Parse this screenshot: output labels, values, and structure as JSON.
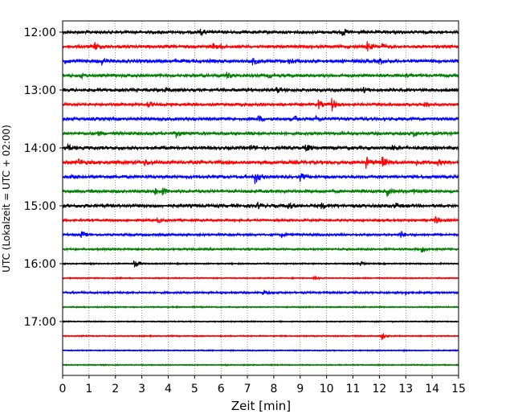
{
  "chart_data": {
    "type": "line",
    "title": "",
    "xlabel": "Zeit  [min]",
    "ylabel": "UTC (Lokalzeit = UTC + 02:00)",
    "xlim": [
      0,
      15
    ],
    "x_ticks": [
      0,
      1,
      2,
      3,
      4,
      5,
      6,
      7,
      8,
      9,
      10,
      11,
      12,
      13,
      14,
      15
    ],
    "x_tick_labels": [
      "0",
      "1",
      "2",
      "3",
      "4",
      "5",
      "6",
      "7",
      "8",
      "9",
      "10",
      "11",
      "12",
      "13",
      "14",
      "15"
    ],
    "y_tick_labels": [
      "12:00",
      "13:00",
      "14:00",
      "15:00",
      "16:00",
      "17:00"
    ],
    "grid": "vertical dotted at each minute",
    "legend": "none",
    "trace_interval_min": 15,
    "start_time": "12:00",
    "color_cycle": [
      "#000000",
      "#ff0000",
      "#0000ff",
      "#008000"
    ],
    "rows": [
      {
        "start": "12:00",
        "color": "#000000",
        "noise": 0.9,
        "events": [
          {
            "t": 5.2,
            "amp": 0.5
          },
          {
            "t": 10.6,
            "amp": 0.6
          }
        ]
      },
      {
        "start": "12:15",
        "color": "#ff0000",
        "noise": 0.9,
        "events": [
          {
            "t": 1.2,
            "amp": 0.9
          },
          {
            "t": 5.7,
            "amp": 0.4
          },
          {
            "t": 6.0,
            "amp": 0.3
          },
          {
            "t": 11.5,
            "amp": 1.1
          },
          {
            "t": 12.1,
            "amp": 0.4
          }
        ]
      },
      {
        "start": "12:30",
        "color": "#0000ff",
        "noise": 1.0,
        "events": [
          {
            "t": 0.1,
            "amp": 0.4
          },
          {
            "t": 1.5,
            "amp": 0.5
          },
          {
            "t": 7.2,
            "amp": 0.7
          },
          {
            "t": 8.6,
            "amp": 0.6
          },
          {
            "t": 12.0,
            "amp": 0.4
          }
        ]
      },
      {
        "start": "12:45",
        "color": "#008000",
        "noise": 0.9,
        "events": [
          {
            "t": 0.7,
            "amp": 0.4
          },
          {
            "t": 6.2,
            "amp": 0.5
          },
          {
            "t": 7.8,
            "amp": 0.3
          },
          {
            "t": 13.0,
            "amp": 0.4
          }
        ]
      },
      {
        "start": "13:00",
        "color": "#000000",
        "noise": 0.9,
        "events": [
          {
            "t": 3.9,
            "amp": 0.4
          },
          {
            "t": 8.1,
            "amp": 0.5
          },
          {
            "t": 11.4,
            "amp": 0.4
          }
        ]
      },
      {
        "start": "13:15",
        "color": "#ff0000",
        "noise": 0.8,
        "events": [
          {
            "t": 3.2,
            "amp": 0.5
          },
          {
            "t": 9.7,
            "amp": 0.7
          },
          {
            "t": 10.2,
            "amp": 1.2
          },
          {
            "t": 13.7,
            "amp": 0.5
          }
        ]
      },
      {
        "start": "13:30",
        "color": "#0000ff",
        "noise": 0.9,
        "events": [
          {
            "t": 7.4,
            "amp": 0.6
          },
          {
            "t": 8.8,
            "amp": 0.5
          },
          {
            "t": 9.6,
            "amp": 0.4
          }
        ]
      },
      {
        "start": "13:45",
        "color": "#008000",
        "noise": 0.9,
        "events": [
          {
            "t": 1.3,
            "amp": 0.4
          },
          {
            "t": 4.3,
            "amp": 0.6
          },
          {
            "t": 7.0,
            "amp": 0.3
          },
          {
            "t": 13.3,
            "amp": 0.5
          }
        ]
      },
      {
        "start": "14:00",
        "color": "#000000",
        "noise": 1.0,
        "events": [
          {
            "t": 0.2,
            "amp": 0.5
          },
          {
            "t": 7.1,
            "amp": 0.4
          },
          {
            "t": 9.2,
            "amp": 0.7
          },
          {
            "t": 12.5,
            "amp": 0.4
          }
        ]
      },
      {
        "start": "14:15",
        "color": "#ff0000",
        "noise": 1.1,
        "events": [
          {
            "t": 0.6,
            "amp": 0.5
          },
          {
            "t": 3.1,
            "amp": 0.5
          },
          {
            "t": 11.5,
            "amp": 0.9
          },
          {
            "t": 12.1,
            "amp": 1.0
          },
          {
            "t": 13.4,
            "amp": 0.5
          },
          {
            "t": 14.2,
            "amp": 0.4
          }
        ]
      },
      {
        "start": "14:30",
        "color": "#0000ff",
        "noise": 0.9,
        "events": [
          {
            "t": 0.3,
            "amp": 0.4
          },
          {
            "t": 7.3,
            "amp": 1.2
          },
          {
            "t": 9.0,
            "amp": 0.6
          }
        ]
      },
      {
        "start": "14:45",
        "color": "#008000",
        "noise": 0.9,
        "events": [
          {
            "t": 3.5,
            "amp": 0.5
          },
          {
            "t": 3.8,
            "amp": 0.6
          },
          {
            "t": 12.3,
            "amp": 0.7
          },
          {
            "t": 13.3,
            "amp": 0.5
          }
        ]
      },
      {
        "start": "15:00",
        "color": "#000000",
        "noise": 1.0,
        "events": [
          {
            "t": 7.4,
            "amp": 0.5
          },
          {
            "t": 8.5,
            "amp": 0.8
          },
          {
            "t": 9.8,
            "amp": 0.4
          },
          {
            "t": 12.6,
            "amp": 0.4
          }
        ]
      },
      {
        "start": "15:15",
        "color": "#ff0000",
        "noise": 0.6,
        "events": [
          {
            "t": 3.6,
            "amp": 0.4
          },
          {
            "t": 14.1,
            "amp": 0.8
          }
        ]
      },
      {
        "start": "15:30",
        "color": "#0000ff",
        "noise": 0.6,
        "events": [
          {
            "t": 0.7,
            "amp": 0.6
          },
          {
            "t": 8.3,
            "amp": 0.4
          },
          {
            "t": 12.8,
            "amp": 0.6
          }
        ]
      },
      {
        "start": "15:45",
        "color": "#008000",
        "noise": 0.5,
        "events": [
          {
            "t": 13.6,
            "amp": 0.5
          }
        ]
      },
      {
        "start": "16:00",
        "color": "#000000",
        "noise": 0.2,
        "events": [
          {
            "t": 2.7,
            "amp": 0.7
          },
          {
            "t": 11.3,
            "amp": 0.3
          }
        ]
      },
      {
        "start": "16:15",
        "color": "#ff0000",
        "noise": 0.15,
        "events": [
          {
            "t": 9.5,
            "amp": 0.4
          }
        ]
      },
      {
        "start": "16:30",
        "color": "#0000ff",
        "noise": 0.5,
        "events": [
          {
            "t": 7.6,
            "amp": 0.5
          },
          {
            "t": 13.0,
            "amp": 0.3
          }
        ]
      },
      {
        "start": "16:45",
        "color": "#008000",
        "noise": 0.15,
        "events": []
      },
      {
        "start": "17:00",
        "color": "#000000",
        "noise": 0.1,
        "events": []
      },
      {
        "start": "17:15",
        "color": "#ff0000",
        "noise": 0.15,
        "events": [
          {
            "t": 12.1,
            "amp": 0.6
          }
        ]
      },
      {
        "start": "17:30",
        "color": "#0000ff",
        "noise": 0.1,
        "events": []
      },
      {
        "start": "17:45",
        "color": "#008000",
        "noise": 0.1,
        "events": []
      }
    ]
  }
}
